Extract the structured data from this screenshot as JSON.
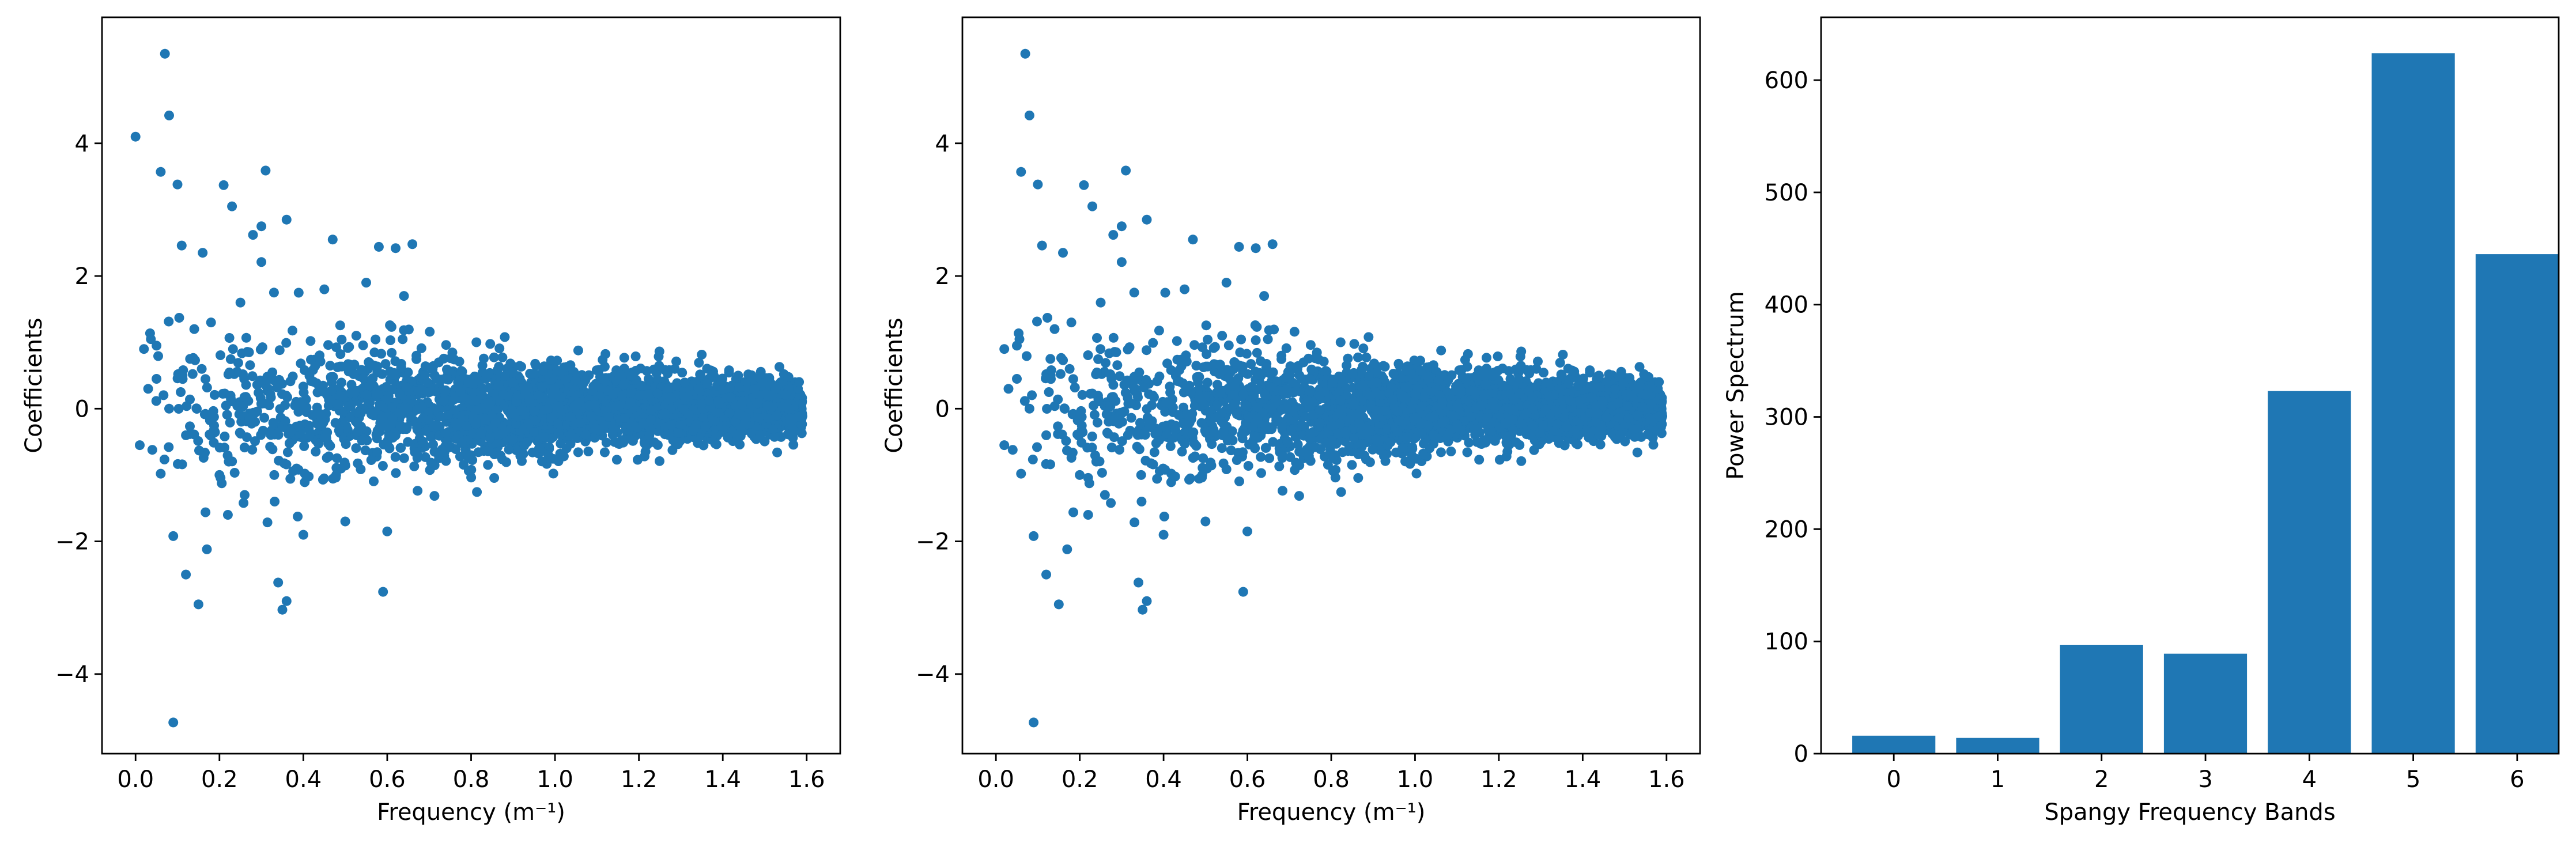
{
  "chart_data": [
    {
      "type": "scatter",
      "title": "",
      "xlabel": "Frequency (m⁻¹)",
      "ylabel": "Coefficients",
      "xlim": [
        -0.08,
        1.68
      ],
      "ylim": [
        -5.2,
        5.9
      ],
      "xticks": [
        0.0,
        0.2,
        0.4,
        0.6,
        0.8,
        1.0,
        1.2,
        1.4,
        1.6
      ],
      "xtick_labels": [
        "0.0",
        "0.2",
        "0.4",
        "0.6",
        "0.8",
        "1.0",
        "1.2",
        "1.4",
        "1.6"
      ],
      "yticks": [
        -4,
        -2,
        0,
        2,
        4
      ],
      "ytick_labels": [
        "−4",
        "−2",
        "0",
        "2",
        "4"
      ],
      "grid": false,
      "color": "#1f77b4",
      "distribution": {
        "x_range": [
          0.0,
          1.59
        ],
        "center": 0.0,
        "spread_at_low_frequency": 1.2,
        "spread_at_high_frequency": 0.3,
        "dense_cluster_starts_at": 0.7
      },
      "points": [
        [
          0.0,
          4.1
        ],
        [
          0.07,
          5.35
        ],
        [
          0.08,
          4.42
        ],
        [
          0.06,
          3.57
        ],
        [
          0.1,
          3.38
        ],
        [
          0.21,
          3.37
        ],
        [
          0.31,
          3.59
        ],
        [
          0.09,
          -4.73
        ],
        [
          0.15,
          -2.95
        ],
        [
          0.36,
          -2.9
        ],
        [
          0.35,
          -3.03
        ],
        [
          0.34,
          -2.62
        ],
        [
          0.59,
          -2.76
        ],
        [
          0.12,
          -2.5
        ],
        [
          0.17,
          -2.12
        ],
        [
          0.09,
          -1.92
        ],
        [
          0.23,
          3.05
        ],
        [
          0.36,
          2.85
        ],
        [
          0.3,
          2.75
        ],
        [
          0.28,
          2.62
        ],
        [
          0.3,
          2.21
        ],
        [
          0.11,
          2.46
        ],
        [
          0.16,
          2.35
        ],
        [
          0.47,
          2.55
        ],
        [
          0.58,
          2.44
        ],
        [
          0.62,
          2.42
        ],
        [
          0.66,
          2.48
        ],
        [
          0.02,
          0.9
        ],
        [
          0.05,
          0.95
        ],
        [
          0.01,
          -0.55
        ],
        [
          0.04,
          -0.62
        ],
        [
          0.06,
          -0.98
        ],
        [
          0.03,
          0.3
        ],
        [
          0.05,
          0.45
        ],
        [
          0.08,
          0.0
        ],
        [
          0.12,
          -0.4
        ],
        [
          0.13,
          0.75
        ],
        [
          0.18,
          1.3
        ],
        [
          0.14,
          1.2
        ],
        [
          0.2,
          -1.0
        ],
        [
          0.22,
          -1.6
        ],
        [
          0.25,
          1.6
        ],
        [
          0.26,
          -1.3
        ],
        [
          0.33,
          1.75
        ],
        [
          0.4,
          -1.9
        ],
        [
          0.45,
          1.8
        ],
        [
          0.5,
          -1.7
        ],
        [
          0.55,
          1.9
        ],
        [
          0.6,
          -1.85
        ],
        [
          0.64,
          1.7
        ]
      ]
    },
    {
      "type": "scatter",
      "title": "",
      "xlabel": "Frequency (m⁻¹)",
      "ylabel": "Coefficients",
      "xlim": [
        -0.08,
        1.68
      ],
      "ylim": [
        -5.2,
        5.9
      ],
      "xticks": [
        0.0,
        0.2,
        0.4,
        0.6,
        0.8,
        1.0,
        1.2,
        1.4,
        1.6
      ],
      "xtick_labels": [
        "0.0",
        "0.2",
        "0.4",
        "0.6",
        "0.8",
        "1.0",
        "1.2",
        "1.4",
        "1.6"
      ],
      "yticks": [
        -4,
        -2,
        0,
        2,
        4
      ],
      "ytick_labels": [
        "−4",
        "−2",
        "0",
        "2",
        "4"
      ],
      "grid": false,
      "color": "#1f77b4",
      "distribution": {
        "x_range": [
          0.02,
          1.59
        ],
        "center": 0.0,
        "spread_at_low_frequency": 1.2,
        "spread_at_high_frequency": 0.3,
        "dense_cluster_starts_at": 0.7
      },
      "points": [
        [
          0.07,
          5.35
        ],
        [
          0.08,
          4.42
        ],
        [
          0.06,
          3.57
        ],
        [
          0.1,
          3.38
        ],
        [
          0.21,
          3.37
        ],
        [
          0.31,
          3.59
        ],
        [
          0.09,
          -4.73
        ],
        [
          0.15,
          -2.95
        ],
        [
          0.36,
          -2.9
        ],
        [
          0.35,
          -3.03
        ],
        [
          0.34,
          -2.62
        ],
        [
          0.59,
          -2.76
        ],
        [
          0.12,
          -2.5
        ],
        [
          0.17,
          -2.12
        ],
        [
          0.09,
          -1.92
        ],
        [
          0.23,
          3.05
        ],
        [
          0.36,
          2.85
        ],
        [
          0.3,
          2.75
        ],
        [
          0.28,
          2.62
        ],
        [
          0.3,
          2.21
        ],
        [
          0.11,
          2.46
        ],
        [
          0.16,
          2.35
        ],
        [
          0.47,
          2.55
        ],
        [
          0.58,
          2.44
        ],
        [
          0.62,
          2.42
        ],
        [
          0.66,
          2.48
        ],
        [
          0.02,
          0.9
        ],
        [
          0.05,
          0.95
        ],
        [
          0.02,
          -0.55
        ],
        [
          0.04,
          -0.62
        ],
        [
          0.06,
          -0.98
        ],
        [
          0.03,
          0.3
        ],
        [
          0.05,
          0.45
        ],
        [
          0.08,
          0.0
        ],
        [
          0.12,
          -0.4
        ],
        [
          0.13,
          0.75
        ],
        [
          0.18,
          1.3
        ],
        [
          0.14,
          1.2
        ],
        [
          0.2,
          -1.0
        ],
        [
          0.22,
          -1.6
        ],
        [
          0.25,
          1.6
        ],
        [
          0.26,
          -1.3
        ],
        [
          0.33,
          1.75
        ],
        [
          0.4,
          -1.9
        ],
        [
          0.45,
          1.8
        ],
        [
          0.5,
          -1.7
        ],
        [
          0.55,
          1.9
        ],
        [
          0.6,
          -1.85
        ],
        [
          0.64,
          1.7
        ]
      ]
    },
    {
      "type": "bar",
      "title": "",
      "xlabel": "Spangy Frequency Bands",
      "ylabel": "Power Spectrum",
      "categories": [
        "0",
        "1",
        "2",
        "3",
        "4",
        "5",
        "6"
      ],
      "values": [
        16,
        14,
        97,
        89,
        323,
        624,
        445
      ],
      "xlim": [
        -0.7,
        6.4
      ],
      "ylim": [
        0,
        656
      ],
      "yticks": [
        0,
        100,
        200,
        300,
        400,
        500,
        600
      ],
      "ytick_labels": [
        "0",
        "100",
        "200",
        "300",
        "400",
        "500",
        "600"
      ],
      "grid": false,
      "color": "#1f77b4"
    }
  ]
}
